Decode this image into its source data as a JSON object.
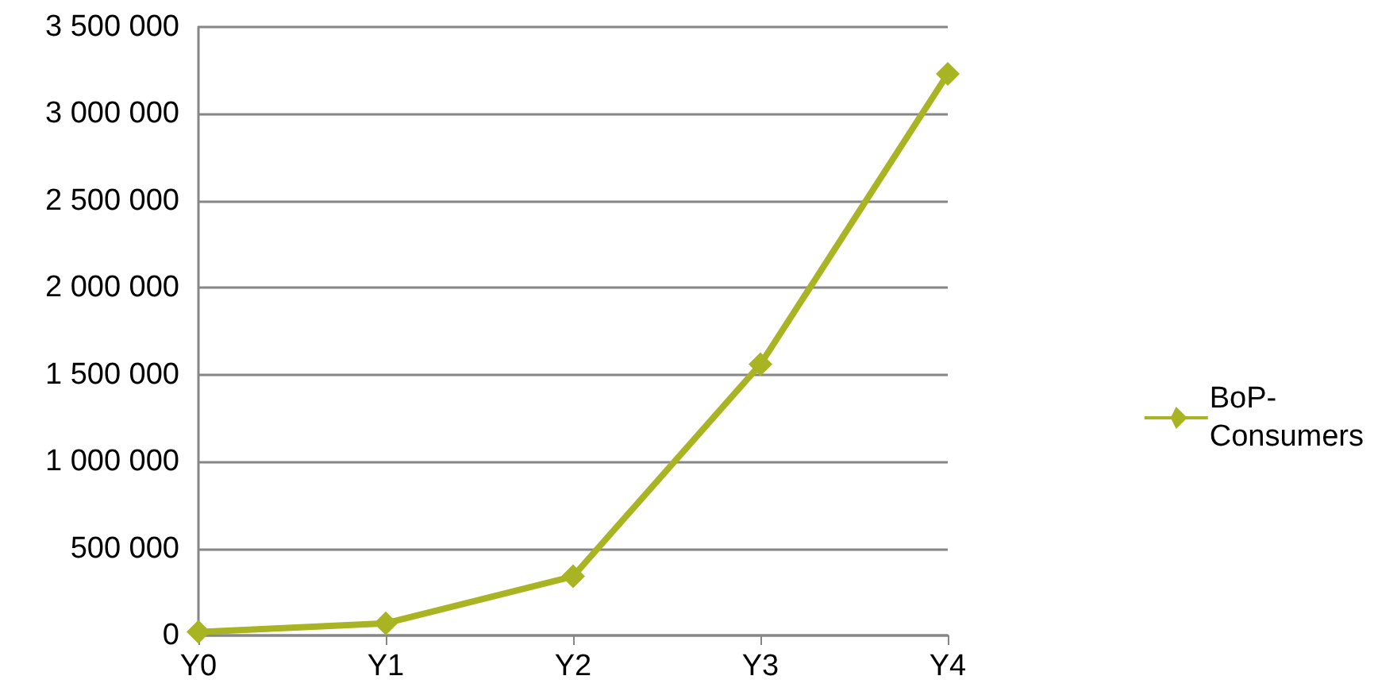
{
  "chart_data": {
    "type": "line",
    "categories": [
      "Y0",
      "Y1",
      "Y2",
      "Y3",
      "Y4"
    ],
    "series": [
      {
        "name": "BoP-Consumers",
        "color": "#a8b422",
        "values": [
          20000,
          70000,
          340000,
          1560000,
          3230000
        ]
      }
    ],
    "ylim": [
      0,
      3500000
    ],
    "yticks": [
      {
        "value": 0,
        "label": "0"
      },
      {
        "value": 500000,
        "label": "500 000"
      },
      {
        "value": 1000000,
        "label": "1 000 000"
      },
      {
        "value": 1500000,
        "label": "1 500 000"
      },
      {
        "value": 2000000,
        "label": "2 000 000"
      },
      {
        "value": 2500000,
        "label": "2 500 000"
      },
      {
        "value": 3000000,
        "label": "3 000 000"
      },
      {
        "value": 3500000,
        "label": "3 500 000"
      }
    ],
    "grid": "y",
    "legend": "right",
    "marker": "diamond",
    "line_style": "solid"
  }
}
